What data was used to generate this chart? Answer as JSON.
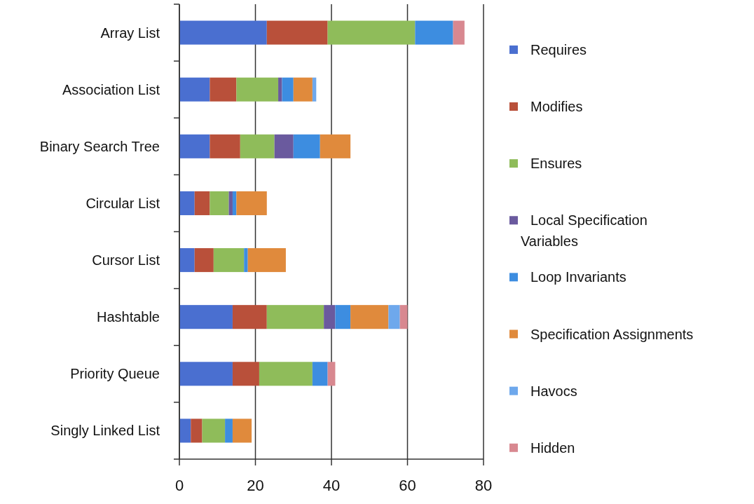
{
  "chart_data": {
    "type": "bar",
    "orientation": "horizontal",
    "stacked": true,
    "categories": [
      "Array List",
      "Association List",
      "Binary Search Tree",
      "Circular List",
      "Cursor List",
      "Hashtable",
      "Priority Queue",
      "Singly Linked List"
    ],
    "series": [
      {
        "name": "Requires",
        "color": "#4a6fd0",
        "values": [
          23,
          8,
          8,
          4,
          4,
          14,
          14,
          3
        ]
      },
      {
        "name": "Modifies",
        "color": "#b9503a",
        "values": [
          16,
          7,
          8,
          4,
          5,
          9,
          7,
          3
        ]
      },
      {
        "name": "Ensures",
        "color": "#8fbc5a",
        "values": [
          23,
          11,
          9,
          5,
          8,
          15,
          14,
          6
        ]
      },
      {
        "name": "Local Specification Variables",
        "color": "#6a5a9e",
        "values": [
          null,
          1,
          5,
          1,
          null,
          3,
          null,
          null
        ]
      },
      {
        "name": "Loop Invariants",
        "color": "#3d8de0",
        "values": [
          10,
          3,
          7,
          1,
          1,
          4,
          4,
          2
        ]
      },
      {
        "name": "Specification Assignments",
        "color": "#e08a3c",
        "values": [
          null,
          5,
          8,
          8,
          10,
          10,
          null,
          5
        ]
      },
      {
        "name": "Havocs",
        "color": "#6ea8ec",
        "values": [
          null,
          1,
          null,
          null,
          null,
          3,
          null,
          null
        ]
      },
      {
        "name": "Hidden",
        "color": "#d88890",
        "values": [
          3,
          null,
          null,
          null,
          null,
          2,
          2,
          null
        ]
      }
    ],
    "xlim": [
      0,
      80
    ],
    "xticks": [
      0,
      20,
      40,
      60,
      80
    ],
    "grid": "x",
    "legend": "right"
  }
}
